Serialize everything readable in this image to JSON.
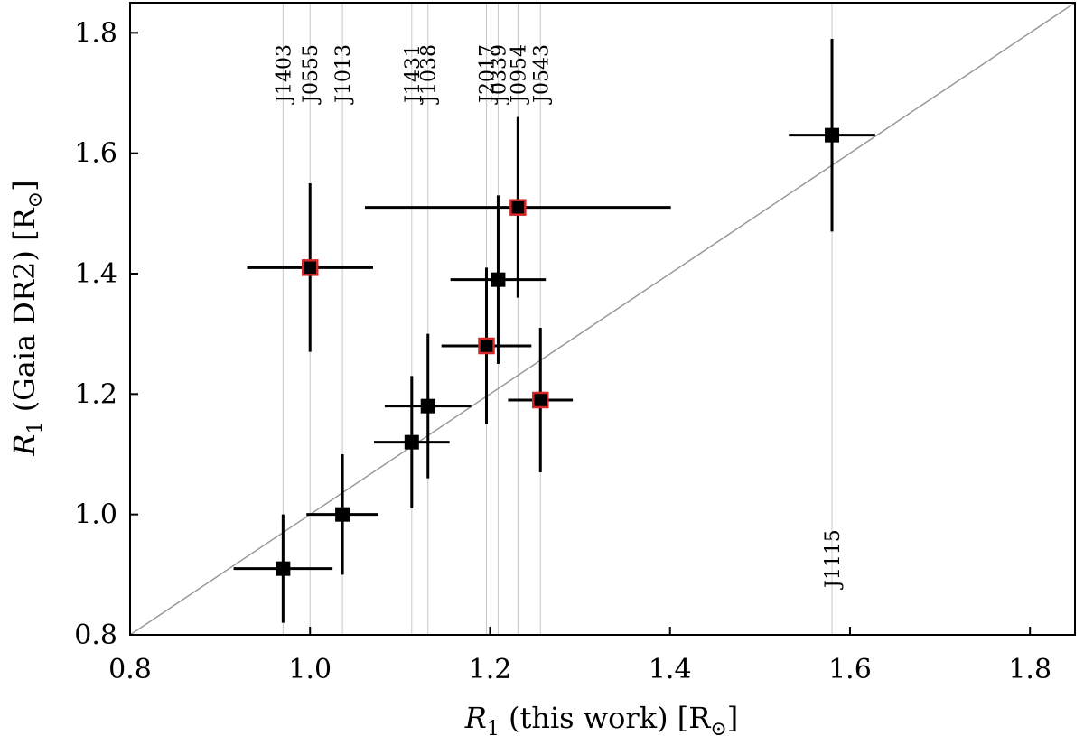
{
  "chart_data": {
    "type": "scatter",
    "title": "",
    "xlabel": {
      "symbol": "R",
      "subscript": "1",
      "text": " (this work) [R",
      "sun": "⊙",
      "close": "]"
    },
    "ylabel": {
      "symbol": "R",
      "subscript": "1",
      "text": " (Gaia DR2) [R",
      "sun": "⊙",
      "close": "]"
    },
    "xlim": [
      0.8,
      1.85
    ],
    "ylim": [
      0.8,
      1.85
    ],
    "xticks": [
      0.8,
      1.0,
      1.2,
      1.4,
      1.6,
      1.8
    ],
    "yticks": [
      0.8,
      1.0,
      1.2,
      1.4,
      1.6,
      1.8
    ],
    "tick_labels": [
      "0.8",
      "1.0",
      "1.2",
      "1.4",
      "1.6",
      "1.8"
    ],
    "reference_line": {
      "type": "one-to-one",
      "color": "#999999"
    },
    "colors": {
      "marker": "#000000",
      "flag_edge": "#d62728",
      "guide": "#c8c8c8",
      "errorbar": "#000000"
    },
    "points": [
      {
        "name": "J1403",
        "x": 0.97,
        "xerr": 0.055,
        "y": 0.91,
        "yerr": 0.09,
        "flagged": false,
        "label_pos": "top"
      },
      {
        "name": "J0555",
        "x": 1.0,
        "xerr": 0.07,
        "y": 1.41,
        "yerr": 0.14,
        "flagged": true,
        "label_pos": "top"
      },
      {
        "name": "J1013",
        "x": 1.036,
        "xerr": 0.04,
        "y": 1.0,
        "yerr": 0.1,
        "flagged": false,
        "label_pos": "top"
      },
      {
        "name": "J1431",
        "x": 1.113,
        "xerr": 0.042,
        "y": 1.12,
        "yerr": 0.11,
        "flagged": false,
        "label_pos": "top"
      },
      {
        "name": "J1038",
        "x": 1.131,
        "xerr": 0.048,
        "y": 1.18,
        "yerr": 0.12,
        "flagged": false,
        "label_pos": "top"
      },
      {
        "name": "J2017",
        "x": 1.196,
        "xerr": 0.05,
        "y": 1.28,
        "yerr": 0.13,
        "flagged": true,
        "label_pos": "top"
      },
      {
        "name": "J0339",
        "x": 1.209,
        "xerr": 0.053,
        "y": 1.39,
        "yerr": 0.14,
        "flagged": false,
        "label_pos": "top"
      },
      {
        "name": "J0954",
        "x": 1.231,
        "xerr": 0.17,
        "y": 1.51,
        "yerr": 0.15,
        "flagged": true,
        "label_pos": "top"
      },
      {
        "name": "J0543",
        "x": 1.256,
        "xerr": 0.036,
        "y": 1.19,
        "yerr": 0.12,
        "flagged": true,
        "label_pos": "top"
      },
      {
        "name": "J1115",
        "x": 1.58,
        "xerr": 0.048,
        "y": 1.63,
        "yerr": 0.16,
        "flagged": false,
        "label_pos": "bottom"
      }
    ]
  }
}
